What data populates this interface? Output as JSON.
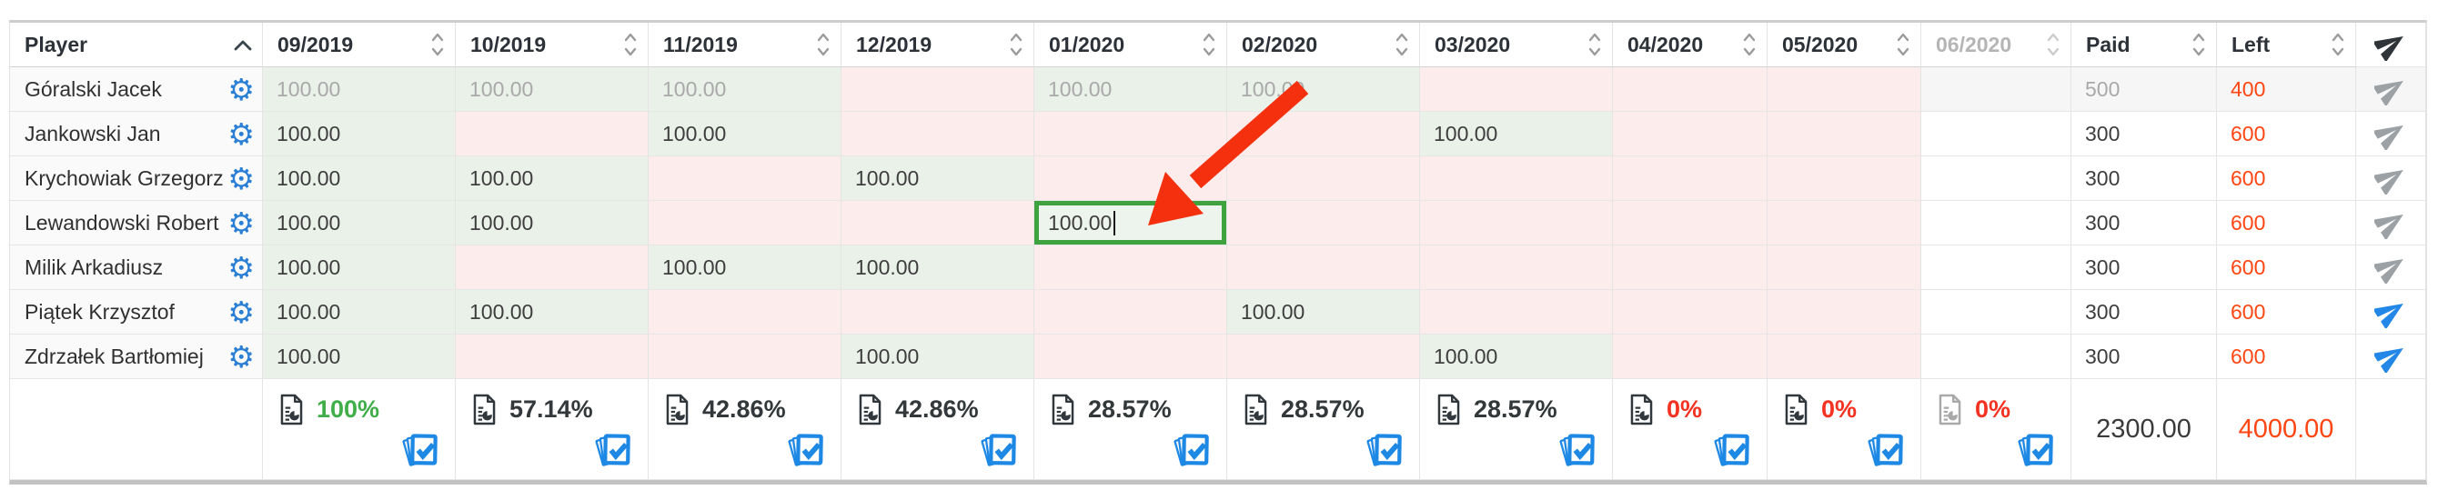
{
  "table": {
    "header": {
      "player_label": "Player",
      "player_sort": "ascending",
      "months": [
        {
          "label": "09/2019",
          "muted": false
        },
        {
          "label": "10/2019",
          "muted": false
        },
        {
          "label": "11/2019",
          "muted": false
        },
        {
          "label": "12/2019",
          "muted": false
        },
        {
          "label": "01/2020",
          "muted": false
        },
        {
          "label": "02/2020",
          "muted": false
        },
        {
          "label": "03/2020",
          "muted": false
        },
        {
          "label": "04/2020",
          "muted": false
        },
        {
          "label": "05/2020",
          "muted": false
        },
        {
          "label": "06/2020",
          "muted": true
        }
      ],
      "paid_label": "Paid",
      "left_label": "Left"
    },
    "rows": [
      {
        "player": "Góralski Jacek",
        "muted": true,
        "send": "inactive",
        "cells": [
          {
            "value": "100.00",
            "state": "paid"
          },
          {
            "value": "100.00",
            "state": "paid"
          },
          {
            "value": "100.00",
            "state": "paid"
          },
          {
            "value": "",
            "state": "due"
          },
          {
            "value": "100.00",
            "state": "paid"
          },
          {
            "value": "100.00",
            "state": "paid"
          },
          {
            "value": "",
            "state": "due"
          },
          {
            "value": "",
            "state": "due"
          },
          {
            "value": "",
            "state": "due"
          },
          {
            "value": "",
            "state": "none"
          }
        ],
        "paid": "500",
        "left": "400"
      },
      {
        "player": "Jankowski Jan",
        "muted": false,
        "send": "inactive",
        "cells": [
          {
            "value": "100.00",
            "state": "paid"
          },
          {
            "value": "",
            "state": "due"
          },
          {
            "value": "100.00",
            "state": "paid"
          },
          {
            "value": "",
            "state": "due"
          },
          {
            "value": "",
            "state": "due"
          },
          {
            "value": "",
            "state": "due"
          },
          {
            "value": "100.00",
            "state": "paid"
          },
          {
            "value": "",
            "state": "due"
          },
          {
            "value": "",
            "state": "due"
          },
          {
            "value": "",
            "state": "none"
          }
        ],
        "paid": "300",
        "left": "600"
      },
      {
        "player": "Krychowiak Grzegorz",
        "muted": false,
        "send": "inactive",
        "cells": [
          {
            "value": "100.00",
            "state": "paid"
          },
          {
            "value": "100.00",
            "state": "paid"
          },
          {
            "value": "",
            "state": "due"
          },
          {
            "value": "100.00",
            "state": "paid"
          },
          {
            "value": "",
            "state": "due"
          },
          {
            "value": "",
            "state": "due"
          },
          {
            "value": "",
            "state": "due"
          },
          {
            "value": "",
            "state": "due"
          },
          {
            "value": "",
            "state": "due"
          },
          {
            "value": "",
            "state": "none"
          }
        ],
        "paid": "300",
        "left": "600"
      },
      {
        "player": "Lewandowski Robert",
        "muted": false,
        "send": "inactive",
        "cells": [
          {
            "value": "100.00",
            "state": "paid"
          },
          {
            "value": "100.00",
            "state": "paid"
          },
          {
            "value": "",
            "state": "due"
          },
          {
            "value": "",
            "state": "due"
          },
          {
            "value": "100.00",
            "state": "editing"
          },
          {
            "value": "",
            "state": "due"
          },
          {
            "value": "",
            "state": "due"
          },
          {
            "value": "",
            "state": "due"
          },
          {
            "value": "",
            "state": "due"
          },
          {
            "value": "",
            "state": "none"
          }
        ],
        "paid": "300",
        "left": "600"
      },
      {
        "player": "Milik Arkadiusz",
        "muted": false,
        "send": "inactive",
        "cells": [
          {
            "value": "100.00",
            "state": "paid"
          },
          {
            "value": "",
            "state": "due"
          },
          {
            "value": "100.00",
            "state": "paid"
          },
          {
            "value": "100.00",
            "state": "paid"
          },
          {
            "value": "",
            "state": "due"
          },
          {
            "value": "",
            "state": "due"
          },
          {
            "value": "",
            "state": "due"
          },
          {
            "value": "",
            "state": "due"
          },
          {
            "value": "",
            "state": "due"
          },
          {
            "value": "",
            "state": "none"
          }
        ],
        "paid": "300",
        "left": "600"
      },
      {
        "player": "Piątek Krzysztof",
        "muted": false,
        "send": "active",
        "cells": [
          {
            "value": "100.00",
            "state": "paid"
          },
          {
            "value": "100.00",
            "state": "paid"
          },
          {
            "value": "",
            "state": "due"
          },
          {
            "value": "",
            "state": "due"
          },
          {
            "value": "",
            "state": "due"
          },
          {
            "value": "100.00",
            "state": "paid"
          },
          {
            "value": "",
            "state": "due"
          },
          {
            "value": "",
            "state": "due"
          },
          {
            "value": "",
            "state": "due"
          },
          {
            "value": "",
            "state": "none"
          }
        ],
        "paid": "300",
        "left": "600"
      },
      {
        "player": "Zdrzałek Bartłomiej",
        "muted": false,
        "send": "active",
        "cells": [
          {
            "value": "100.00",
            "state": "paid"
          },
          {
            "value": "",
            "state": "due"
          },
          {
            "value": "",
            "state": "due"
          },
          {
            "value": "100.00",
            "state": "paid"
          },
          {
            "value": "",
            "state": "due"
          },
          {
            "value": "",
            "state": "due"
          },
          {
            "value": "100.00",
            "state": "paid"
          },
          {
            "value": "",
            "state": "due"
          },
          {
            "value": "",
            "state": "due"
          },
          {
            "value": "",
            "state": "none"
          }
        ],
        "paid": "300",
        "left": "600"
      }
    ],
    "summary": {
      "cells": [
        {
          "percent": "100%",
          "tone": "green",
          "icon_muted": false
        },
        {
          "percent": "57.14%",
          "tone": "dark",
          "icon_muted": false
        },
        {
          "percent": "42.86%",
          "tone": "dark",
          "icon_muted": false
        },
        {
          "percent": "42.86%",
          "tone": "dark",
          "icon_muted": false
        },
        {
          "percent": "28.57%",
          "tone": "dark",
          "icon_muted": false
        },
        {
          "percent": "28.57%",
          "tone": "dark",
          "icon_muted": false
        },
        {
          "percent": "28.57%",
          "tone": "dark",
          "icon_muted": false
        },
        {
          "percent": "0%",
          "tone": "red",
          "icon_muted": false
        },
        {
          "percent": "0%",
          "tone": "red",
          "icon_muted": false
        },
        {
          "percent": "0%",
          "tone": "red",
          "icon_muted": true
        }
      ],
      "paid_total": "2300.00",
      "left_total": "4000.00"
    }
  },
  "icons": {
    "gear_glyph": "⚙"
  },
  "colors": {
    "accent_blue": "#2b7fd4",
    "paid_green_bg": "#e9f1e9",
    "due_pink_bg": "#fdecec",
    "edit_green": "#3ea33e",
    "left_orange": "#ff4613",
    "percent_green": "#3fae49",
    "percent_red": "#f43222",
    "arrow_red": "#f5300f",
    "check_blue": "#1e88e5"
  }
}
